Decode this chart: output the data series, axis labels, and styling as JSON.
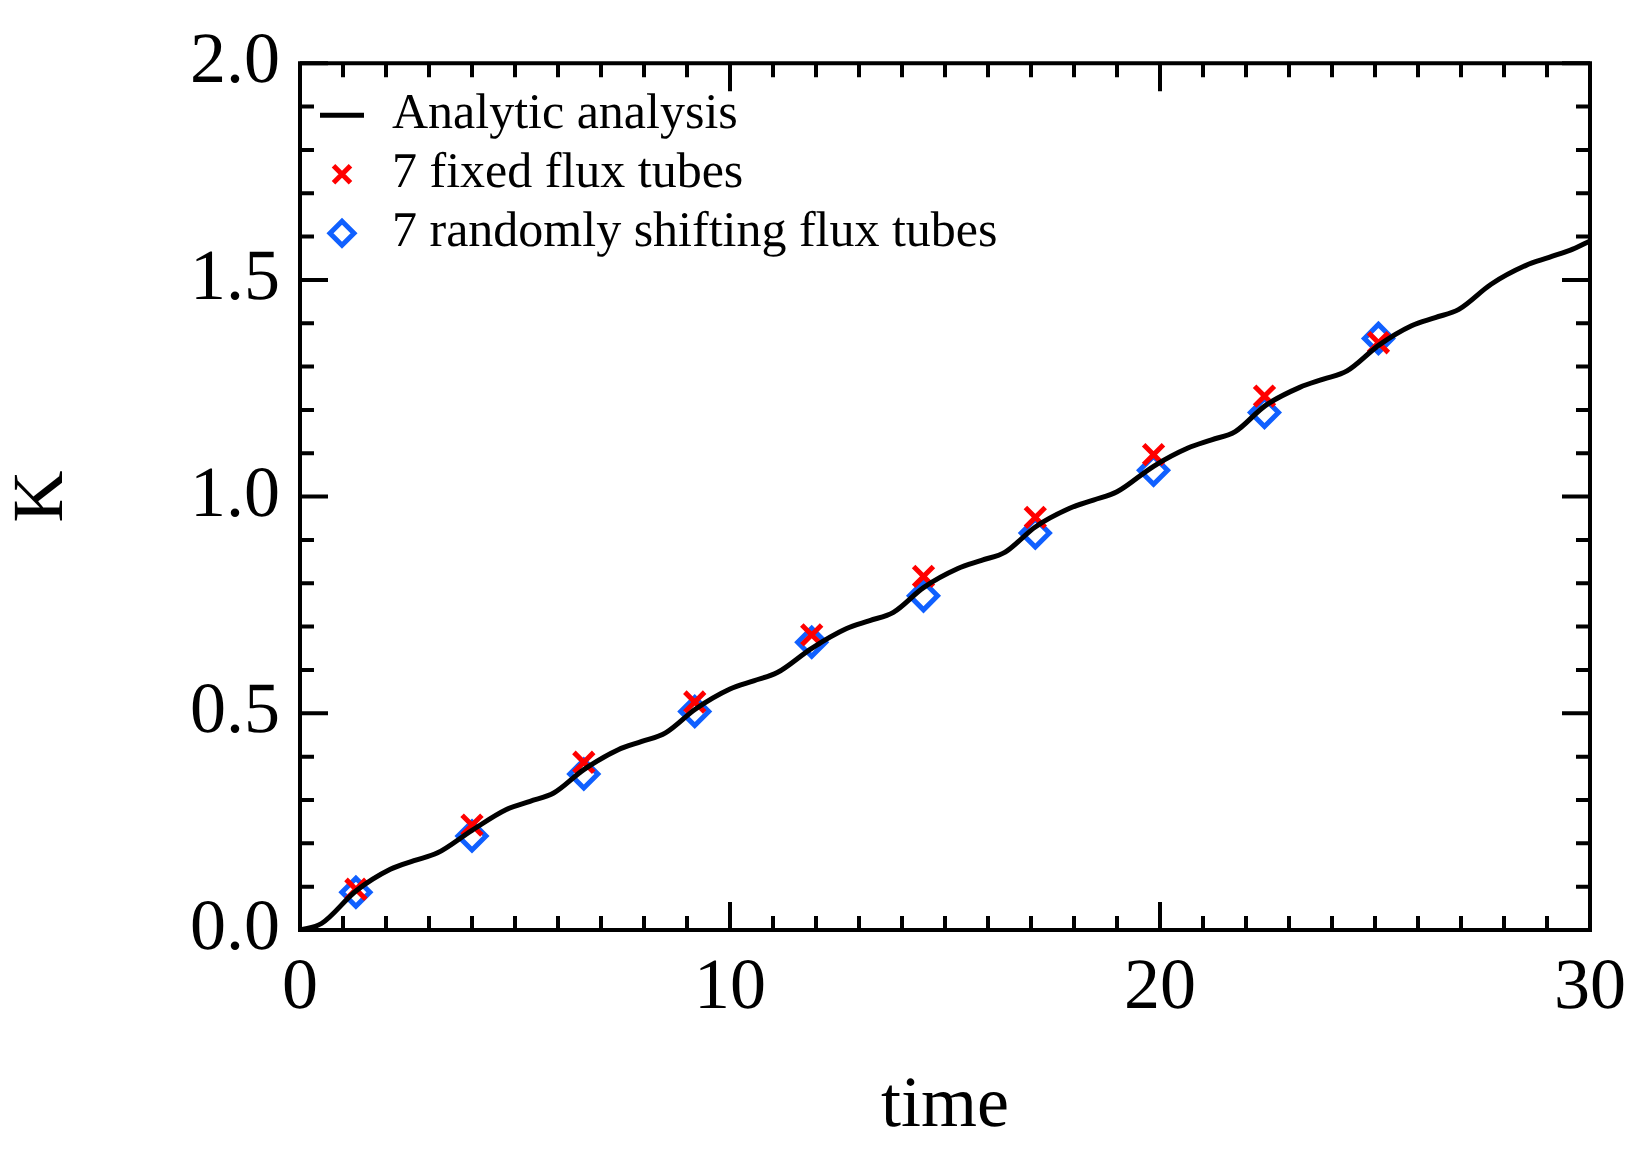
{
  "chart_data": {
    "type": "line",
    "xlabel": "time",
    "ylabel": "K",
    "xlim": [
      0,
      30
    ],
    "ylim": [
      0,
      2.0
    ],
    "xticks": [
      0,
      {
        "value": 1,
        "label": null
      },
      {
        "value": 2,
        "label": null
      },
      {
        "value": 3,
        "label": null
      },
      {
        "value": 4,
        "label": null
      },
      {
        "value": 5,
        "label": null
      },
      {
        "value": 6,
        "label": null
      },
      {
        "value": 7,
        "label": null
      },
      {
        "value": 8,
        "label": null
      },
      {
        "value": 9,
        "label": null
      },
      10,
      {
        "value": 11,
        "label": null
      },
      {
        "value": 12,
        "label": null
      },
      {
        "value": 13,
        "label": null
      },
      {
        "value": 14,
        "label": null
      },
      {
        "value": 15,
        "label": null
      },
      {
        "value": 16,
        "label": null
      },
      {
        "value": 17,
        "label": null
      },
      {
        "value": 18,
        "label": null
      },
      {
        "value": 19,
        "label": null
      },
      20,
      {
        "value": 21,
        "label": null
      },
      {
        "value": 22,
        "label": null
      },
      {
        "value": 23,
        "label": null
      },
      {
        "value": 24,
        "label": null
      },
      {
        "value": 25,
        "label": null
      },
      {
        "value": 26,
        "label": null
      },
      {
        "value": 27,
        "label": null
      },
      {
        "value": 28,
        "label": null
      },
      {
        "value": 29,
        "label": null
      },
      30
    ],
    "yticks": [
      {
        "value": 0,
        "label": "0.0"
      },
      {
        "value": 0.1,
        "label": null
      },
      {
        "value": 0.2,
        "label": null
      },
      {
        "value": 0.3,
        "label": null
      },
      {
        "value": 0.4,
        "label": null
      },
      0.5,
      {
        "value": 0.6,
        "label": null
      },
      {
        "value": 0.7,
        "label": null
      },
      {
        "value": 0.8,
        "label": null
      },
      {
        "value": 0.9,
        "label": null
      },
      {
        "value": 1,
        "label": "1.0"
      },
      {
        "value": 1.1,
        "label": null
      },
      {
        "value": 1.2,
        "label": null
      },
      {
        "value": 1.3,
        "label": null
      },
      {
        "value": 1.4,
        "label": null
      },
      1.5,
      {
        "value": 1.6,
        "label": null
      },
      {
        "value": 1.7,
        "label": null
      },
      {
        "value": 1.8,
        "label": null
      },
      {
        "value": 1.9,
        "label": null
      },
      {
        "value": 2,
        "label": "2.0"
      }
    ],
    "grid": false,
    "legend": "top left",
    "series": [
      {
        "name": "Analytic analysis",
        "type": "line",
        "marker": "none",
        "color": "#000000",
        "x": [
          0,
          0.5,
          1.3,
          2.1,
          2.65,
          3.2,
          4.0,
          4.8,
          5.35,
          5.9,
          6.6,
          7.4,
          7.95,
          8.5,
          9.2,
          10.0,
          10.55,
          11.1,
          11.9,
          12.7,
          13.25,
          13.8,
          14.5,
          15.3,
          15.85,
          16.4,
          17.1,
          17.9,
          18.45,
          19.0,
          19.85,
          20.65,
          21.2,
          21.75,
          22.45,
          23.25,
          23.8,
          24.35,
          25.1,
          25.85,
          26.4,
          26.95,
          27.7,
          28.5,
          29.05,
          29.6,
          30
        ],
        "values": [
          0,
          0.015,
          0.09,
          0.14,
          0.16,
          0.178,
          0.23,
          0.278,
          0.297,
          0.316,
          0.37,
          0.416,
          0.435,
          0.455,
          0.51,
          0.556,
          0.575,
          0.594,
          0.65,
          0.695,
          0.714,
          0.733,
          0.79,
          0.834,
          0.853,
          0.872,
          0.93,
          0.973,
          0.992,
          1.011,
          1.07,
          1.112,
          1.131,
          1.15,
          1.21,
          1.252,
          1.271,
          1.29,
          1.35,
          1.394,
          1.413,
          1.432,
          1.49,
          1.533,
          1.552,
          1.571,
          1.59
        ]
      },
      {
        "name": "7 fixed flux tubes",
        "type": "scatter",
        "marker": "cross",
        "color": "#ff0000",
        "x": [
          1.3,
          4.0,
          6.6,
          9.18,
          11.9,
          14.5,
          17.1,
          19.85,
          22.43,
          25.08
        ],
        "values": [
          0.094,
          0.242,
          0.387,
          0.526,
          0.681,
          0.816,
          0.952,
          1.097,
          1.232,
          1.355
        ]
      },
      {
        "name": "7 randomly shifting flux tubes",
        "type": "scatter",
        "marker": "diamond",
        "color": "#1060ff",
        "x": [
          1.3,
          4.0,
          6.6,
          9.18,
          11.9,
          14.5,
          17.1,
          19.85,
          22.43,
          25.08
        ],
        "values": [
          0.087,
          0.217,
          0.36,
          0.504,
          0.664,
          0.771,
          0.916,
          1.061,
          1.194,
          1.365
        ]
      }
    ]
  }
}
